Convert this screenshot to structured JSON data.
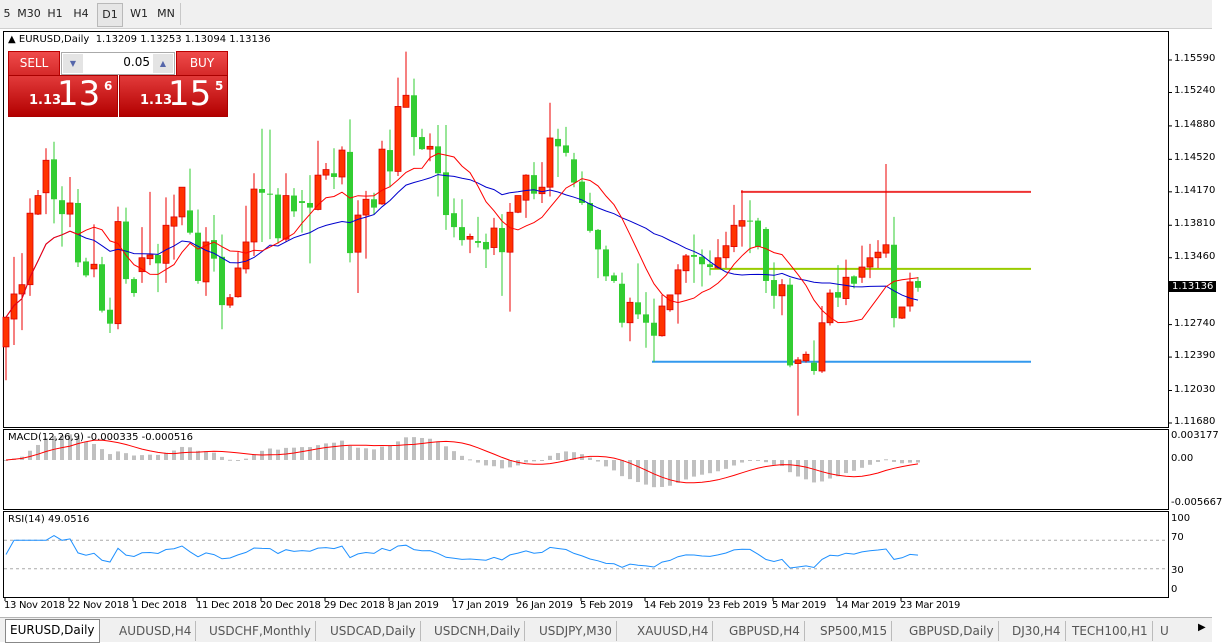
{
  "toolbar": {
    "timeframes": [
      "5",
      "M30",
      "H1",
      "H4",
      "D1",
      "W1",
      "MN"
    ],
    "active_timeframe": "D1"
  },
  "chart": {
    "symbol_label": "EURUSD,Daily",
    "ohlc_label": "1.13209 1.13253 1.13094 1.13136",
    "current_price": 1.13136,
    "current_price_label": "1.13136",
    "price_ticks": [
      "1.15590",
      "1.15240",
      "1.14880",
      "1.14520",
      "1.14170",
      "1.13810",
      "1.13460",
      "1.12740",
      "1.12390",
      "1.12030",
      "1.11680"
    ],
    "colors": {
      "bull": "#ff3300",
      "bear": "#32cd32",
      "ma_fast": "#ff0000",
      "ma_slow": "#0000cd"
    },
    "levels": [
      {
        "price": 1.1417,
        "color": "#ee3333"
      },
      {
        "price": 1.1334,
        "color": "#99cc00"
      },
      {
        "price": 1.1234,
        "color": "#3399ee"
      }
    ],
    "candles": [
      [
        1.125,
        1.1282,
        1.1214,
        1.1282
      ],
      [
        1.128,
        1.1347,
        1.1252,
        1.1307
      ],
      [
        1.1307,
        1.1351,
        1.1268,
        1.1317
      ],
      [
        1.1317,
        1.141,
        1.1305,
        1.1394
      ],
      [
        1.1393,
        1.1419,
        1.1392,
        1.1413
      ],
      [
        1.1416,
        1.1464,
        1.1393,
        1.1451
      ],
      [
        1.1452,
        1.1471,
        1.1383,
        1.1409
      ],
      [
        1.1408,
        1.1423,
        1.1358,
        1.1393
      ],
      [
        1.1393,
        1.1433,
        1.1379,
        1.1405
      ],
      [
        1.1405,
        1.142,
        1.1336,
        1.1341
      ],
      [
        1.1342,
        1.1346,
        1.1325,
        1.1327
      ],
      [
        1.1334,
        1.1382,
        1.1325,
        1.1339
      ],
      [
        1.1339,
        1.1347,
        1.1287,
        1.1289
      ],
      [
        1.129,
        1.1303,
        1.1265,
        1.1275
      ],
      [
        1.1275,
        1.1401,
        1.1269,
        1.1385
      ],
      [
        1.1385,
        1.14,
        1.1318,
        1.1323
      ],
      [
        1.1323,
        1.1325,
        1.1304,
        1.1308
      ],
      [
        1.1331,
        1.1379,
        1.1319,
        1.1346
      ],
      [
        1.1345,
        1.1417,
        1.1338,
        1.1349
      ],
      [
        1.1349,
        1.1361,
        1.1309,
        1.134
      ],
      [
        1.134,
        1.1411,
        1.1319,
        1.1381
      ],
      [
        1.138,
        1.1414,
        1.1344,
        1.139
      ],
      [
        1.139,
        1.1422,
        1.1381,
        1.1422
      ],
      [
        1.1397,
        1.1442,
        1.1371,
        1.1373
      ],
      [
        1.1373,
        1.1398,
        1.1318,
        1.1321
      ],
      [
        1.132,
        1.1379,
        1.1305,
        1.1363
      ],
      [
        1.1365,
        1.1392,
        1.1331,
        1.1345
      ],
      [
        1.1347,
        1.1371,
        1.1269,
        1.1295
      ],
      [
        1.1295,
        1.1307,
        1.1292,
        1.1303
      ],
      [
        1.1304,
        1.1352,
        1.1303,
        1.1335
      ],
      [
        1.1334,
        1.1402,
        1.1329,
        1.1363
      ],
      [
        1.1363,
        1.1437,
        1.1348,
        1.142
      ],
      [
        1.142,
        1.1485,
        1.1363,
        1.1416
      ],
      [
        1.1415,
        1.1484,
        1.1366,
        1.1414
      ],
      [
        1.1414,
        1.1421,
        1.1361,
        1.1367
      ],
      [
        1.1366,
        1.1437,
        1.1363,
        1.1413
      ],
      [
        1.1413,
        1.1421,
        1.139,
        1.1396
      ],
      [
        1.1407,
        1.1419,
        1.1373,
        1.1405
      ],
      [
        1.1405,
        1.1435,
        1.134,
        1.14
      ],
      [
        1.1398,
        1.1472,
        1.1397,
        1.1435
      ],
      [
        1.1435,
        1.1448,
        1.143,
        1.1441
      ],
      [
        1.1437,
        1.1464,
        1.142,
        1.1433
      ],
      [
        1.1433,
        1.1466,
        1.1425,
        1.1462
      ],
      [
        1.146,
        1.1495,
        1.1341,
        1.1351
      ],
      [
        1.1352,
        1.1408,
        1.1308,
        1.1392
      ],
      [
        1.1392,
        1.1418,
        1.1345,
        1.1409
      ],
      [
        1.1409,
        1.1416,
        1.1392,
        1.14
      ],
      [
        1.1404,
        1.1472,
        1.1403,
        1.1463
      ],
      [
        1.1462,
        1.1484,
        1.1422,
        1.1439
      ],
      [
        1.1439,
        1.154,
        1.1434,
        1.1509
      ],
      [
        1.1508,
        1.1568,
        1.1508,
        1.1521
      ],
      [
        1.1521,
        1.1539,
        1.1456,
        1.1476
      ],
      [
        1.1476,
        1.1485,
        1.1462,
        1.1463
      ],
      [
        1.1463,
        1.148,
        1.145,
        1.1466
      ],
      [
        1.1466,
        1.1489,
        1.1412,
        1.1437
      ],
      [
        1.1438,
        1.1489,
        1.1376,
        1.1392
      ],
      [
        1.1394,
        1.141,
        1.1368,
        1.1379
      ],
      [
        1.1379,
        1.1409,
        1.1359,
        1.1365
      ],
      [
        1.1366,
        1.1372,
        1.1351,
        1.1369
      ],
      [
        1.1364,
        1.139,
        1.1357,
        1.1362
      ],
      [
        1.1363,
        1.1372,
        1.1335,
        1.1355
      ],
      [
        1.1357,
        1.1389,
        1.1349,
        1.1378
      ],
      [
        1.1378,
        1.1393,
        1.1305,
        1.1352
      ],
      [
        1.1352,
        1.1405,
        1.1288,
        1.1395
      ],
      [
        1.1395,
        1.1413,
        1.1394,
        1.1413
      ],
      [
        1.1408,
        1.1436,
        1.1389,
        1.1435
      ],
      [
        1.1435,
        1.1449,
        1.1409,
        1.1415
      ],
      [
        1.1415,
        1.1449,
        1.1405,
        1.1422
      ],
      [
        1.1422,
        1.1513,
        1.1412,
        1.1475
      ],
      [
        1.1474,
        1.1485,
        1.1433,
        1.1466
      ],
      [
        1.1467,
        1.1487,
        1.1455,
        1.1459
      ],
      [
        1.1452,
        1.1459,
        1.1422,
        1.1427
      ],
      [
        1.1428,
        1.1439,
        1.1403,
        1.1405
      ],
      [
        1.1405,
        1.1416,
        1.1373,
        1.1375
      ],
      [
        1.1376,
        1.1377,
        1.1324,
        1.1355
      ],
      [
        1.1355,
        1.1359,
        1.1321,
        1.1326
      ],
      [
        1.1327,
        1.133,
        1.1319,
        1.1321
      ],
      [
        1.1318,
        1.133,
        1.1271,
        1.1276
      ],
      [
        1.1276,
        1.1303,
        1.1256,
        1.1298
      ],
      [
        1.1298,
        1.134,
        1.128,
        1.1285
      ],
      [
        1.1285,
        1.1309,
        1.1249,
        1.1276
      ],
      [
        1.1276,
        1.1302,
        1.1234,
        1.1262
      ],
      [
        1.1262,
        1.1306,
        1.1261,
        1.1294
      ],
      [
        1.129,
        1.1306,
        1.1288,
        1.1306
      ],
      [
        1.1307,
        1.1339,
        1.1275,
        1.1333
      ],
      [
        1.1332,
        1.135,
        1.1319,
        1.1348
      ],
      [
        1.1349,
        1.1371,
        1.1319,
        1.1347
      ],
      [
        1.1347,
        1.1355,
        1.1315,
        1.1339
      ],
      [
        1.1339,
        1.1354,
        1.1327,
        1.1336
      ],
      [
        1.1335,
        1.1366,
        1.1334,
        1.1346
      ],
      [
        1.1346,
        1.1374,
        1.1335,
        1.1359
      ],
      [
        1.1358,
        1.1403,
        1.1352,
        1.1381
      ],
      [
        1.138,
        1.1419,
        1.1358,
        1.1386
      ],
      [
        1.1386,
        1.1408,
        1.1351,
        1.1385
      ],
      [
        1.1386,
        1.1389,
        1.1355,
        1.1358
      ],
      [
        1.1377,
        1.1379,
        1.1308,
        1.1321
      ],
      [
        1.1322,
        1.1341,
        1.1291,
        1.1305
      ],
      [
        1.1305,
        1.1323,
        1.1284,
        1.1317
      ],
      [
        1.1317,
        1.1324,
        1.1228,
        1.123
      ],
      [
        1.1232,
        1.1239,
        1.1176,
        1.1236
      ],
      [
        1.1235,
        1.1245,
        1.1233,
        1.1242
      ],
      [
        1.1233,
        1.1257,
        1.122,
        1.1224
      ],
      [
        1.1224,
        1.1294,
        1.1222,
        1.1276
      ],
      [
        1.1276,
        1.1312,
        1.1273,
        1.1308
      ],
      [
        1.1309,
        1.1338,
        1.1293,
        1.1303
      ],
      [
        1.1302,
        1.1344,
        1.1295,
        1.1325
      ],
      [
        1.1326,
        1.1327,
        1.1313,
        1.1318
      ],
      [
        1.1325,
        1.1359,
        1.1319,
        1.1336
      ],
      [
        1.1336,
        1.1361,
        1.1324,
        1.1346
      ],
      [
        1.1346,
        1.1365,
        1.1335,
        1.1352
      ],
      [
        1.1351,
        1.1447,
        1.1346,
        1.136
      ],
      [
        1.136,
        1.139,
        1.1271,
        1.1281
      ],
      [
        1.1281,
        1.1293,
        1.128,
        1.1293
      ],
      [
        1.1294,
        1.133,
        1.1288,
        1.132
      ],
      [
        1.13209,
        1.13253,
        1.13094,
        1.13136
      ]
    ],
    "dates": [
      "13 Nov 2018",
      "22 Nov 2018",
      "1 Dec 2018",
      "11 Dec 2018",
      "20 Dec 2018",
      "29 Dec 2018",
      "8 Jan 2019",
      "17 Jan 2019",
      "26 Jan 2019",
      "5 Feb 2019",
      "14 Feb 2019",
      "23 Feb 2019",
      "5 Mar 2019",
      "14 Mar 2019",
      "23 Mar 2019"
    ]
  },
  "trade_panel": {
    "sell_label": "SELL",
    "buy_label": "BUY",
    "lot_value": "0.05",
    "sell_price": {
      "prefix": "1.13",
      "big": "13",
      "sup": "6"
    },
    "buy_price": {
      "prefix": "1.13",
      "big": "15",
      "sup": "5"
    }
  },
  "macd": {
    "label": "MACD(12,26,9) -0.000335 -0.000516",
    "ticks": [
      "0.003177",
      "0.00",
      "-0.005667"
    ],
    "colors": {
      "histogram": "#c0c0c0",
      "signal": "#ff0000"
    }
  },
  "rsi": {
    "label": "RSI(14) 49.0516",
    "ticks": [
      "100",
      "70",
      "30",
      "0"
    ],
    "color": "#1e90ff"
  },
  "tabs": [
    {
      "label": "EURUSD,Daily",
      "active": true
    },
    {
      "label": "AUDUSD,H4"
    },
    {
      "label": "USDCHF,Monthly"
    },
    {
      "label": "USDCAD,Daily"
    },
    {
      "label": "USDCNH,Daily"
    },
    {
      "label": "USDJPY,M30"
    },
    {
      "label": "XAUUSD,H4"
    },
    {
      "label": "GBPUSD,H4"
    },
    {
      "label": "SP500,M15"
    },
    {
      "label": "GBPUSD,Daily"
    },
    {
      "label": "DJ30,H4"
    },
    {
      "label": "TECH100,H1"
    },
    {
      "label": "U"
    }
  ]
}
